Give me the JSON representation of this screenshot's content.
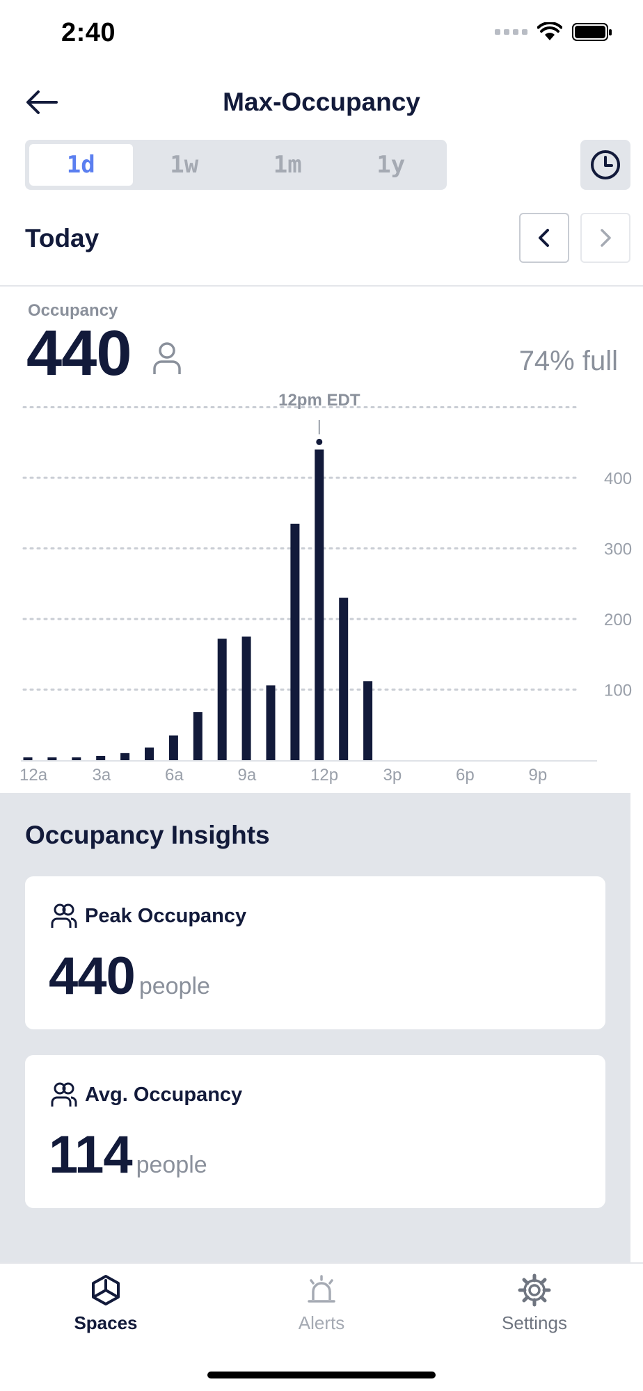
{
  "status_bar": {
    "time": "2:40"
  },
  "header": {
    "title": "Max-Occupancy"
  },
  "range_tabs": [
    {
      "label": "1d",
      "active": true
    },
    {
      "label": "1w",
      "active": false
    },
    {
      "label": "1m",
      "active": false
    },
    {
      "label": "1y",
      "active": false
    }
  ],
  "period": {
    "label": "Today"
  },
  "summary": {
    "label": "Occupancy",
    "value": "440",
    "percent_full": "74% full"
  },
  "chart_data": {
    "type": "bar",
    "x_tick_labels": [
      "12a",
      "3a",
      "6a",
      "9a",
      "12p",
      "3p",
      "6p",
      "9p"
    ],
    "y_tick_labels": [
      "100",
      "200",
      "300",
      "400"
    ],
    "ylim": [
      0,
      500
    ],
    "grid": true,
    "hours": [
      0,
      1,
      2,
      3,
      4,
      5,
      6,
      7,
      8,
      9,
      10,
      11,
      12,
      13,
      14
    ],
    "values": [
      4,
      4,
      4,
      6,
      10,
      18,
      35,
      68,
      172,
      175,
      106,
      335,
      440,
      230,
      112
    ],
    "highlight": {
      "hour": 12,
      "label": "12pm EDT",
      "value": 440
    },
    "bar_color": "#121a3a"
  },
  "insights": {
    "title": "Occupancy Insights",
    "peak": {
      "title": "Peak Occupancy",
      "value": "440",
      "unit": "people"
    },
    "avg": {
      "title": "Avg. Occupancy",
      "value": "114",
      "unit": "people"
    }
  },
  "bottom_nav": {
    "spaces": "Spaces",
    "alerts": "Alerts",
    "settings": "Settings"
  },
  "colors": {
    "accent": "#5b7ff0",
    "text_primary": "#121a3a",
    "text_muted": "#8a909b",
    "panel_bg": "#e2e5ea"
  }
}
